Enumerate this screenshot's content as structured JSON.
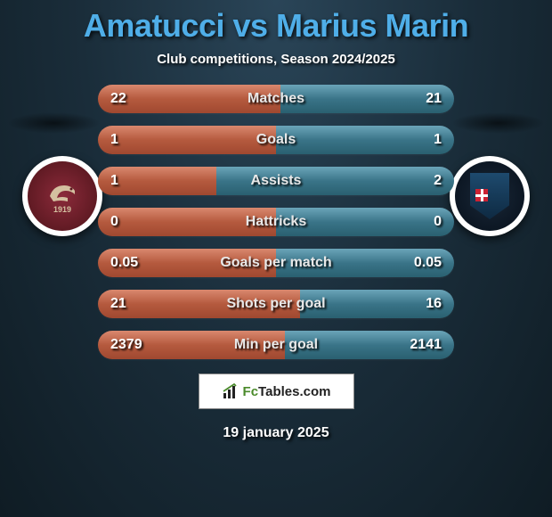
{
  "title": "Amatucci vs Marius Marin",
  "subtitle": "Club competitions, Season 2024/2025",
  "date": "19 january 2025",
  "colors": {
    "title": "#4faee8",
    "bar_left": "#b55a3e",
    "bar_right": "#3a7488",
    "bg_inner": "#2a4558",
    "bg_outer": "#0f1c24"
  },
  "team_left": {
    "name": "Salernitana",
    "crest_year": "1919",
    "crest_bg": "#5a1820"
  },
  "team_right": {
    "name": "Pisa",
    "crest_bg": "#0a1420",
    "shield_color": "#1e4a6e"
  },
  "logo": {
    "text_prefix": "Fc",
    "text_suffix": "Tables.com"
  },
  "stats": [
    {
      "label": "Matches",
      "left_val": "22",
      "right_val": "21",
      "left_pct": 51.2,
      "right_pct": 48.8
    },
    {
      "label": "Goals",
      "left_val": "1",
      "right_val": "1",
      "left_pct": 50.0,
      "right_pct": 50.0
    },
    {
      "label": "Assists",
      "left_val": "1",
      "right_val": "2",
      "left_pct": 33.3,
      "right_pct": 66.7
    },
    {
      "label": "Hattricks",
      "left_val": "0",
      "right_val": "0",
      "left_pct": 50.0,
      "right_pct": 50.0
    },
    {
      "label": "Goals per match",
      "left_val": "0.05",
      "right_val": "0.05",
      "left_pct": 50.0,
      "right_pct": 50.0
    },
    {
      "label": "Shots per goal",
      "left_val": "21",
      "right_val": "16",
      "left_pct": 56.8,
      "right_pct": 43.2
    },
    {
      "label": "Min per goal",
      "left_val": "2379",
      "right_val": "2141",
      "left_pct": 52.6,
      "right_pct": 47.4
    }
  ]
}
